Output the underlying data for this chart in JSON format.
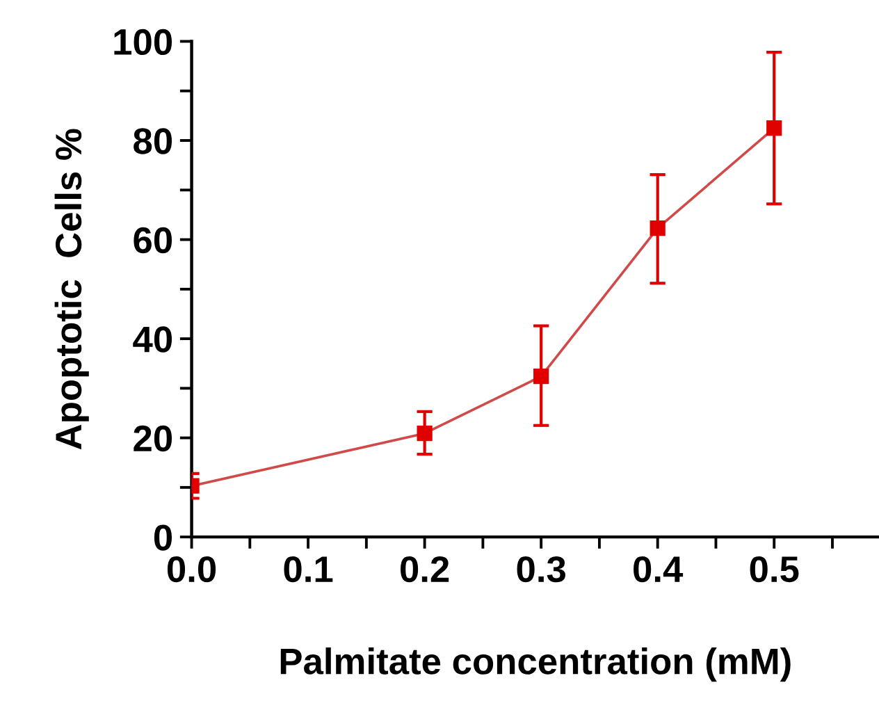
{
  "chart_data": {
    "type": "line",
    "xlabel": "Palmitate concentration (mM)",
    "ylabel": "Apoptotic  Cells %",
    "x": [
      0.0,
      0.2,
      0.3,
      0.4,
      0.5
    ],
    "series": [
      {
        "color": "#e00000",
        "values": [
          10.3,
          20.9,
          32.4,
          62.3,
          82.5
        ],
        "errors": [
          2.5,
          [
            16.7,
            25.3
          ],
          [
            22.5,
            42.6
          ],
          [
            51.2,
            73.1
          ],
          15.3
        ]
      }
    ],
    "marker": "square",
    "line_style": "solid",
    "grid": false,
    "legend": false,
    "xlim": [
      0,
      0.59
    ],
    "ylim": [
      0,
      100
    ],
    "xticks": [
      {
        "value": 0,
        "label": "0.0"
      },
      {
        "value": 0.05,
        "label": null
      },
      0.1,
      {
        "value": 0.15,
        "label": null
      },
      0.2,
      {
        "value": 0.25,
        "label": null
      },
      0.3,
      {
        "value": 0.35,
        "label": null
      },
      0.4,
      {
        "value": 0.45,
        "label": null
      },
      0.5,
      {
        "value": 0.55,
        "label": null
      }
    ],
    "yticks": [
      0,
      {
        "value": 10,
        "label": null
      },
      20,
      {
        "value": 30,
        "label": null
      },
      40,
      {
        "value": 50,
        "label": null
      },
      60,
      {
        "value": 70,
        "label": null
      },
      80,
      {
        "value": 90,
        "label": null
      },
      100
    ]
  }
}
